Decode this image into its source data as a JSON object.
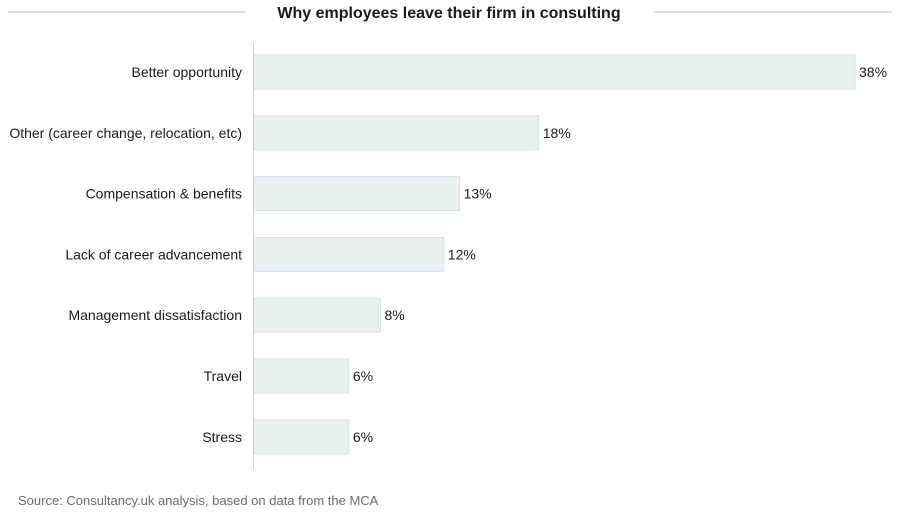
{
  "colors": {
    "bar_fill": "#e8f0f0",
    "bar_stroke": "#d6e3e3",
    "rule": "#bdbdbd",
    "axis": "#d0d0d0",
    "text": "#1a1a1a",
    "source_text": "#6b6b6b"
  },
  "chart_data": {
    "type": "bar",
    "orientation": "horizontal",
    "title": "Why employees leave their firm in consulting",
    "categories": [
      "Better opportunity",
      "Other (career change, relocation, etc)",
      "Compensation & benefits",
      "Lack of career advancement",
      "Management dissatisfaction",
      "Travel",
      "Stress"
    ],
    "values": [
      38,
      18,
      13,
      12,
      8,
      6,
      6
    ],
    "value_labels": [
      "38%",
      "18%",
      "13%",
      "12%",
      "8%",
      "6%",
      "6%"
    ],
    "unit": "%",
    "xlim": [
      0,
      38
    ],
    "xlabel": "",
    "ylabel": "",
    "grid": false,
    "legend": "none"
  },
  "source": "Source: Consultancy.uk analysis, based on data from the MCA"
}
